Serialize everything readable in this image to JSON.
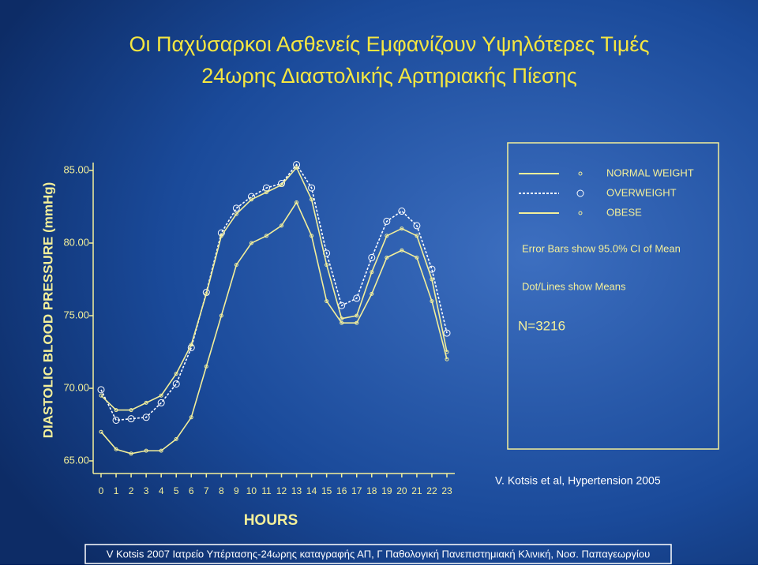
{
  "chart_data": {
    "type": "line",
    "title": "Οι Παχύσαρκοι Ασθενείς Εμφανίζουν Υψηλότερες Τιμές",
    "subtitle": "24ωρης Διαστολικής Αρτηριακής Πίεσης",
    "y_label": "DIASTOLIC BLOOD PRESSURE (mmHg)",
    "x_label": "HOURS",
    "categories": [
      "0",
      "1",
      "2",
      "3",
      "4",
      "5",
      "6",
      "7",
      "8",
      "9",
      "10",
      "11",
      "12",
      "13",
      "14",
      "15",
      "16",
      "17",
      "18",
      "19",
      "20",
      "21",
      "22",
      "23"
    ],
    "ylim": [
      65,
      85
    ],
    "yticks": [
      {
        "value": 65,
        "label": "65.00"
      },
      {
        "value": 70,
        "label": "70.00"
      },
      {
        "value": 75,
        "label": "75.00"
      },
      {
        "value": 80,
        "label": "80.00"
      },
      {
        "value": 85,
        "label": "85.00"
      }
    ],
    "series": [
      {
        "name": "NORMAL WEIGHT",
        "color": "#f3ef9a",
        "style": "solid",
        "values": [
          67,
          65.8,
          65.5,
          65.7,
          65.7,
          66.5,
          68,
          71.5,
          75,
          78.5,
          80,
          80.5,
          81.2,
          82.8,
          80.5,
          76,
          74.5,
          74.5,
          76.5,
          79,
          79.5,
          79,
          76,
          72
        ]
      },
      {
        "name": "OVERWEIGHT",
        "color": "#ffffff",
        "style": "dotted",
        "values": [
          69.9,
          67.8,
          67.9,
          68.0,
          69.0,
          70.3,
          72.8,
          76.6,
          80.7,
          82.4,
          83.2,
          83.8,
          84.1,
          85.4,
          83.8,
          79.3,
          75.7,
          76.2,
          79.0,
          81.5,
          82.2,
          81.2,
          78.2,
          73.8
        ]
      },
      {
        "name": "OBESE",
        "color": "#f3ef9a",
        "style": "solid",
        "values": [
          69.5,
          68.5,
          68.5,
          69,
          69.5,
          71,
          73,
          76.5,
          80.5,
          82,
          83,
          83.5,
          84,
          85.2,
          83,
          78.5,
          74.8,
          75,
          78,
          80.5,
          81,
          80.5,
          77.5,
          72.5
        ]
      }
    ],
    "notes": [
      "Error Bars show 95.0% CI of Mean",
      "Dot/Lines show Means",
      "N=3216"
    ],
    "citation": "V. Kotsis et al, Hypertension 2005",
    "footer": "V Kotsis 2007 Ιατρείο Υπέρτασης-24ωρης καταγραφής ΑΠ, Γ Παθολογική Πανεπιστημιακή Κλινική, Νοσ. Παπαγεωργίου"
  }
}
